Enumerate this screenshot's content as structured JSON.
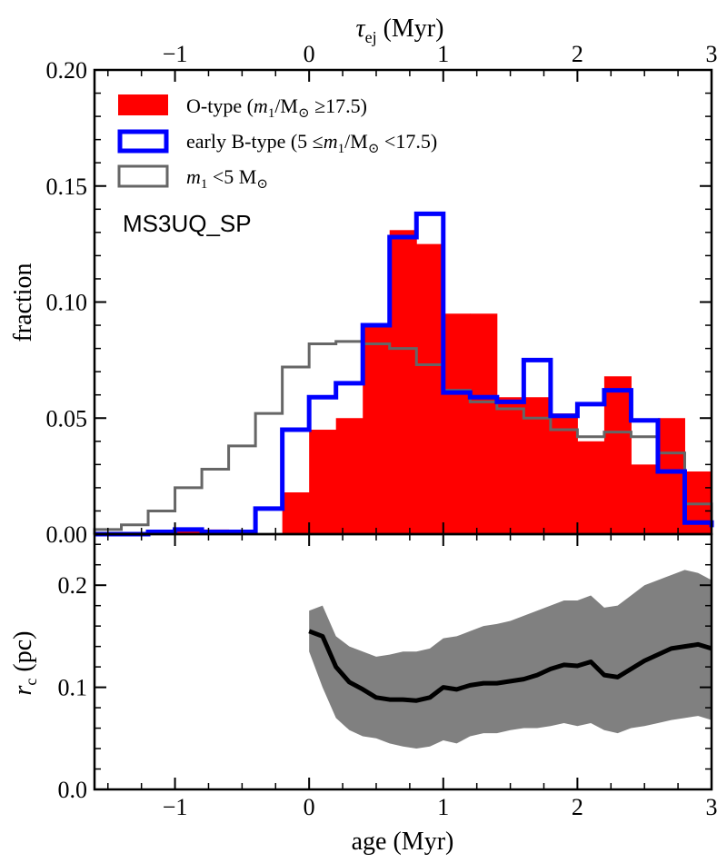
{
  "chart_data": [
    {
      "type": "histogram",
      "ylabel": "fraction",
      "top_xlabel": "τ",
      "top_xlabel_sub": "ej",
      "top_xlabel_unit": " (Myr)",
      "xlim": [
        -1.6,
        3.0
      ],
      "ylim": [
        0.0,
        0.2
      ],
      "xticks": [
        -1,
        0,
        1,
        2,
        3
      ],
      "top_xticks": [
        -1,
        0,
        1,
        2,
        3
      ],
      "top_xticks_display": [
        "−1",
        "0",
        "1",
        "2",
        "3"
      ],
      "yticks": [
        0.0,
        0.05,
        0.1,
        0.15,
        0.2
      ],
      "yticks_display": [
        "0.00",
        "0.05",
        "0.10",
        "0.15",
        "0.20"
      ],
      "annotation": "MS3UQ_SP",
      "legend_location": "upper-left",
      "bin_edges": [
        -1.6,
        -1.4,
        -1.2,
        -1.0,
        -0.8,
        -0.6,
        -0.4,
        -0.2,
        0.0,
        0.2,
        0.4,
        0.6,
        0.8,
        1.0,
        1.2,
        1.4,
        1.6,
        1.8,
        2.0,
        2.2,
        2.4,
        2.6,
        2.8,
        3.0
      ],
      "series": [
        {
          "name": "O-type",
          "legend": {
            "pre": "O-type (",
            "m": "m",
            "sub": "1",
            "rest": "/M",
            "sun": "⊙",
            "post": " ≥17.5)"
          },
          "style": "filled",
          "color": "#ff0000",
          "values": [
            0.0,
            0.0,
            0.0,
            0.002,
            0.002,
            0.0,
            0.0,
            0.018,
            0.045,
            0.05,
            0.09,
            0.131,
            0.125,
            0.095,
            0.095,
            0.059,
            0.059,
            0.052,
            0.04,
            0.068,
            0.03,
            0.05,
            0.027,
            0.013
          ]
        },
        {
          "name": "early B-type",
          "legend": {
            "pre": "early B-type (5 ≤",
            "m": "m",
            "sub": "1",
            "rest": "/M",
            "sun": "⊙",
            "post": " <17.5)"
          },
          "style": "step",
          "color": "#0000ff",
          "values": [
            0.0,
            0.0,
            0.001,
            0.002,
            0.001,
            0.001,
            0.011,
            0.045,
            0.059,
            0.065,
            0.09,
            0.128,
            0.138,
            0.061,
            0.059,
            0.057,
            0.075,
            0.051,
            0.056,
            0.062,
            0.049,
            0.027,
            0.005,
            0.003
          ]
        },
        {
          "name": "m1 < 5 Msun",
          "legend": {
            "pre": "",
            "m": "m",
            "sub": "1",
            "rest": " <5 M",
            "sun": "⊙",
            "post": ""
          },
          "style": "step",
          "color": "#666666",
          "values": [
            0.002,
            0.004,
            0.01,
            0.02,
            0.028,
            0.038,
            0.052,
            0.072,
            0.082,
            0.083,
            0.082,
            0.08,
            0.073,
            0.062,
            0.057,
            0.054,
            0.05,
            0.045,
            0.042,
            0.044,
            0.042,
            0.035,
            0.013,
            0.003
          ]
        }
      ]
    },
    {
      "type": "line",
      "xlabel": "age (Myr)",
      "ylabel": "r",
      "ylabel_sub": "c",
      "ylabel_unit": " (pc)",
      "xlim": [
        -1.6,
        3.0
      ],
      "ylim": [
        0.0,
        0.25
      ],
      "xticks": [
        -1,
        0,
        1,
        2,
        3
      ],
      "xticks_display": [
        "−1",
        "0",
        "1",
        "2",
        "3"
      ],
      "yticks": [
        0.0,
        0.1,
        0.2
      ],
      "yticks_display": [
        "0.0",
        "0.1",
        "0.2"
      ],
      "line_color": "#000000",
      "band_color": "#808080",
      "x": [
        0.0,
        0.1,
        0.2,
        0.3,
        0.4,
        0.5,
        0.6,
        0.7,
        0.8,
        0.9,
        1.0,
        1.1,
        1.2,
        1.3,
        1.4,
        1.5,
        1.6,
        1.7,
        1.8,
        1.9,
        2.0,
        2.1,
        2.2,
        2.3,
        2.4,
        2.5,
        2.6,
        2.7,
        2.8,
        2.9,
        3.0
      ],
      "median": [
        0.155,
        0.15,
        0.12,
        0.105,
        0.098,
        0.09,
        0.088,
        0.088,
        0.087,
        0.09,
        0.1,
        0.098,
        0.102,
        0.104,
        0.104,
        0.106,
        0.108,
        0.112,
        0.118,
        0.122,
        0.121,
        0.125,
        0.112,
        0.11,
        0.118,
        0.126,
        0.132,
        0.138,
        0.14,
        0.142,
        0.138
      ],
      "lower": [
        0.135,
        0.1,
        0.07,
        0.058,
        0.052,
        0.05,
        0.045,
        0.042,
        0.04,
        0.042,
        0.048,
        0.045,
        0.052,
        0.055,
        0.055,
        0.058,
        0.06,
        0.06,
        0.062,
        0.065,
        0.062,
        0.065,
        0.058,
        0.055,
        0.06,
        0.062,
        0.065,
        0.068,
        0.07,
        0.072,
        0.068
      ],
      "upper": [
        0.175,
        0.18,
        0.15,
        0.14,
        0.135,
        0.13,
        0.132,
        0.135,
        0.135,
        0.138,
        0.148,
        0.15,
        0.155,
        0.16,
        0.162,
        0.165,
        0.17,
        0.175,
        0.18,
        0.185,
        0.185,
        0.19,
        0.178,
        0.18,
        0.19,
        0.2,
        0.205,
        0.21,
        0.215,
        0.212,
        0.205
      ]
    }
  ]
}
